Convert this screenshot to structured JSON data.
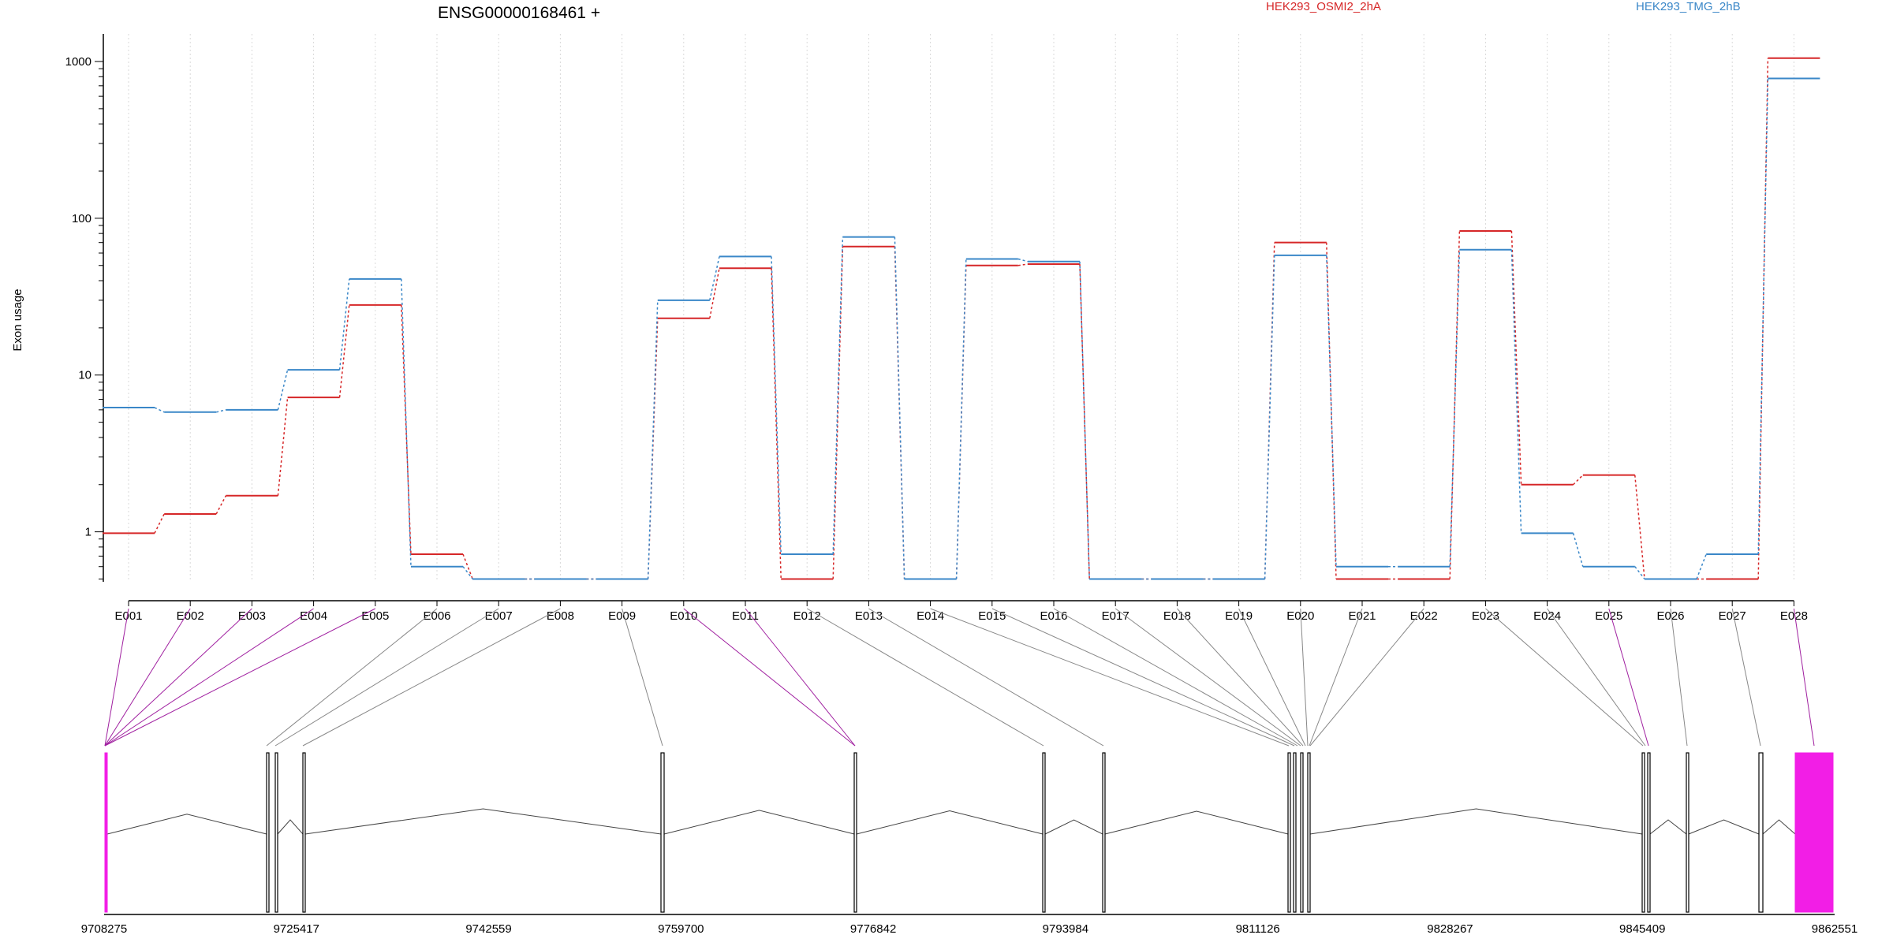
{
  "chart_data": {
    "type": "line",
    "title": "ENSG00000168461 +",
    "xlabel": "",
    "ylabel": "Exon usage",
    "yscale": "log",
    "ylim": [
      0.48,
      1500
    ],
    "yticks": [
      "1",
      "10",
      "100",
      "1000"
    ],
    "grid": "vertical dotted lines at each exon",
    "legend_placement": "top",
    "categories": [
      "E001",
      "E002",
      "E003",
      "E004",
      "E005",
      "E006",
      "E007",
      "E008",
      "E009",
      "E010",
      "E011",
      "E012",
      "E013",
      "E014",
      "E015",
      "E016",
      "E017",
      "E018",
      "E019",
      "E020",
      "E021",
      "E022",
      "E023",
      "E024",
      "E025",
      "E026",
      "E027",
      "E028"
    ],
    "series": [
      {
        "name": "HEK293_OSMI2_2hA",
        "color": "#d62728",
        "values": [
          0.98,
          1.3,
          1.7,
          7.2,
          28,
          0.72,
          0.5,
          0.5,
          0.5,
          23,
          48,
          0.5,
          66,
          0.5,
          50,
          51,
          0.5,
          0.5,
          0.5,
          70,
          0.5,
          0.5,
          83,
          2.0,
          2.3,
          0.5,
          0.5,
          1050
        ]
      },
      {
        "name": "HEK293_TMG_2hB",
        "color": "#3a87c8",
        "values": [
          6.2,
          5.8,
          6.0,
          10.8,
          41,
          0.6,
          0.5,
          0.5,
          0.5,
          30,
          57,
          0.72,
          76,
          0.5,
          55,
          53,
          0.5,
          0.5,
          0.5,
          58,
          0.6,
          0.6,
          63,
          0.98,
          0.6,
          0.5,
          0.72,
          780
        ]
      }
    ],
    "gene_model": {
      "coordinate_ticks": [
        "9708275",
        "9725417",
        "9742559",
        "9759700",
        "9776842",
        "9793984",
        "9811126",
        "9828267",
        "9845409",
        "9862551"
      ],
      "highlight_color": "#f21ee6",
      "highlighted_exons": [
        "E001",
        "E002",
        "E003",
        "E004",
        "E005",
        "E010",
        "E011",
        "E025",
        "E028"
      ]
    }
  }
}
